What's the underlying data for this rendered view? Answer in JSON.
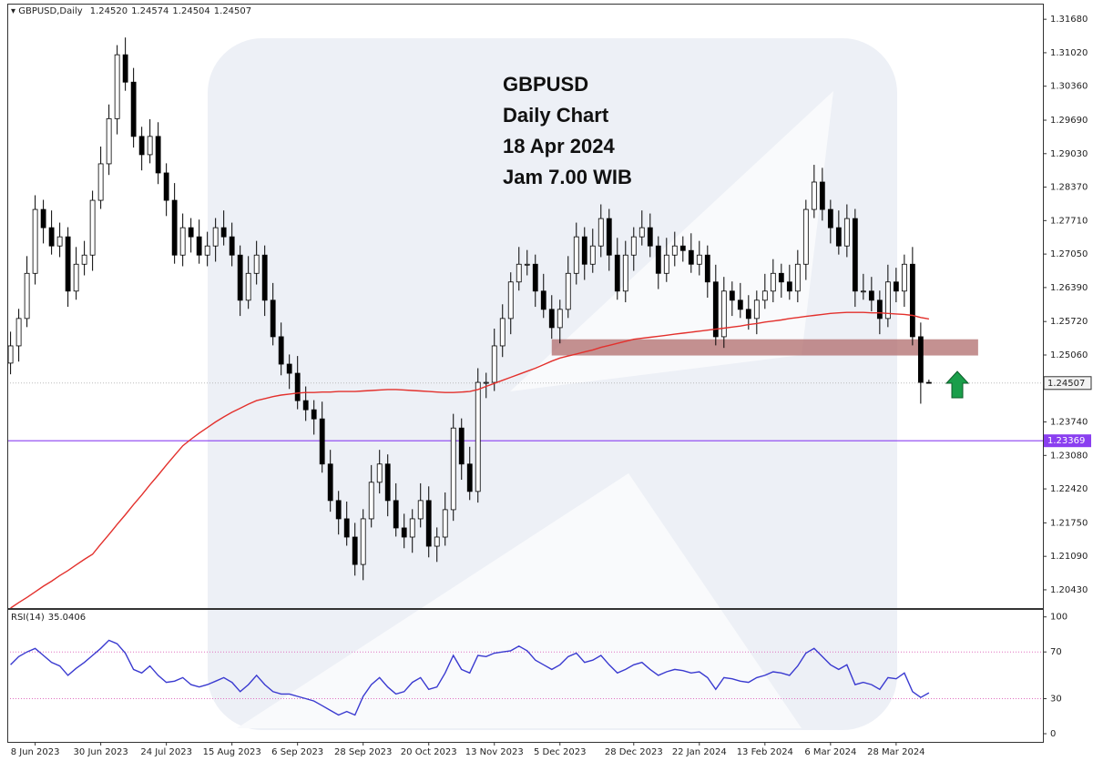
{
  "chart_data": {
    "type": "candlestick",
    "title": "GBPUSD,Daily",
    "ohlc_labels": [
      "1.24520",
      "1.24574",
      "1.24504",
      "1.24507"
    ],
    "annotation": [
      "GBPUSD",
      "Daily Chart",
      "18 Apr 2024",
      "Jam 7.00 WIB"
    ],
    "up_color": "#ffffff",
    "down_color": "#000000",
    "candles": [
      [
        1.249,
        1.2552,
        1.2468,
        1.2524
      ],
      [
        1.2524,
        1.2597,
        1.2493,
        1.2578
      ],
      [
        1.2578,
        1.2701,
        1.2561,
        1.2667
      ],
      [
        1.2667,
        1.2821,
        1.2645,
        1.2793
      ],
      [
        1.2793,
        1.2812,
        1.2726,
        1.2757
      ],
      [
        1.2757,
        1.2791,
        1.2704,
        1.2721
      ],
      [
        1.2721,
        1.2767,
        1.2699,
        1.2739
      ],
      [
        1.2739,
        1.2758,
        1.2601,
        1.2632
      ],
      [
        1.2632,
        1.2719,
        1.2615,
        1.2685
      ],
      [
        1.2685,
        1.2731,
        1.2663,
        1.2703
      ],
      [
        1.2703,
        1.283,
        1.2672,
        1.2811
      ],
      [
        1.2811,
        1.2917,
        1.2794,
        1.2883
      ],
      [
        1.2883,
        1.3,
        1.2861,
        1.2972
      ],
      [
        1.2972,
        1.3117,
        1.2941,
        1.3098
      ],
      [
        1.3098,
        1.3132,
        1.3027,
        1.3044
      ],
      [
        1.3044,
        1.3072,
        1.2915,
        1.2937
      ],
      [
        1.2937,
        1.2956,
        1.287,
        1.2901
      ],
      [
        1.2901,
        1.2971,
        1.2884,
        1.2937
      ],
      [
        1.2937,
        1.2965,
        1.2843,
        1.2865
      ],
      [
        1.2865,
        1.2884,
        1.278,
        1.2811
      ],
      [
        1.2811,
        1.2845,
        1.2686,
        1.2703
      ],
      [
        1.2703,
        1.2785,
        1.2681,
        1.2757
      ],
      [
        1.2757,
        1.2776,
        1.2708,
        1.2739
      ],
      [
        1.2739,
        1.2773,
        1.2686,
        1.2703
      ],
      [
        1.2703,
        1.2749,
        1.2681,
        1.2721
      ],
      [
        1.2721,
        1.2776,
        1.269,
        1.2757
      ],
      [
        1.2757,
        1.2791,
        1.2722,
        1.2739
      ],
      [
        1.2739,
        1.2767,
        1.2681,
        1.2703
      ],
      [
        1.2703,
        1.2722,
        1.2583,
        1.2614
      ],
      [
        1.2614,
        1.2701,
        1.2597,
        1.2667
      ],
      [
        1.2667,
        1.2731,
        1.2645,
        1.2703
      ],
      [
        1.2703,
        1.2722,
        1.2583,
        1.2614
      ],
      [
        1.2614,
        1.2648,
        1.2525,
        1.2542
      ],
      [
        1.2542,
        1.257,
        1.2466,
        1.2488
      ],
      [
        1.2488,
        1.2507,
        1.2439,
        1.247
      ],
      [
        1.247,
        1.2504,
        1.2399,
        1.2416
      ],
      [
        1.2416,
        1.2444,
        1.2376,
        1.2398
      ],
      [
        1.2398,
        1.2417,
        1.2349,
        1.238
      ],
      [
        1.238,
        1.2414,
        1.2274,
        1.2291
      ],
      [
        1.2291,
        1.2319,
        1.2197,
        1.2219
      ],
      [
        1.2219,
        1.2238,
        1.2152,
        1.2183
      ],
      [
        1.2183,
        1.2217,
        1.213,
        1.2147
      ],
      [
        1.2147,
        1.2175,
        1.2071,
        1.2093
      ],
      [
        1.2093,
        1.2202,
        1.2062,
        1.2183
      ],
      [
        1.2183,
        1.2289,
        1.2166,
        1.2255
      ],
      [
        1.2255,
        1.2319,
        1.2233,
        1.2291
      ],
      [
        1.2291,
        1.231,
        1.2188,
        1.2219
      ],
      [
        1.2219,
        1.2253,
        1.2148,
        1.2165
      ],
      [
        1.2165,
        1.2193,
        1.2125,
        1.2147
      ],
      [
        1.2147,
        1.2202,
        1.2116,
        1.2183
      ],
      [
        1.2183,
        1.2253,
        1.2166,
        1.2219
      ],
      [
        1.2219,
        1.2247,
        1.2107,
        1.2129
      ],
      [
        1.2129,
        1.2166,
        1.2098,
        1.2147
      ],
      [
        1.2147,
        1.2235,
        1.213,
        1.2201
      ],
      [
        1.2201,
        1.239,
        1.2179,
        1.2362
      ],
      [
        1.2362,
        1.2381,
        1.226,
        1.2291
      ],
      [
        1.2291,
        1.2325,
        1.222,
        1.2237
      ],
      [
        1.2237,
        1.248,
        1.2215,
        1.2452
      ],
      [
        1.2452,
        1.2471,
        1.2421,
        1.2452
      ],
      [
        1.2452,
        1.2558,
        1.2435,
        1.2524
      ],
      [
        1.2524,
        1.2606,
        1.2502,
        1.2578
      ],
      [
        1.2578,
        1.2669,
        1.2547,
        1.265
      ],
      [
        1.265,
        1.2719,
        1.2633,
        1.2685
      ],
      [
        1.2685,
        1.2713,
        1.2663,
        1.2685
      ],
      [
        1.2685,
        1.2704,
        1.2601,
        1.2632
      ],
      [
        1.2632,
        1.2666,
        1.2579,
        1.2596
      ],
      [
        1.2596,
        1.2624,
        1.2538,
        1.256
      ],
      [
        1.256,
        1.2615,
        1.2529,
        1.2596
      ],
      [
        1.2596,
        1.2701,
        1.2579,
        1.2667
      ],
      [
        1.2667,
        1.2767,
        1.2645,
        1.2739
      ],
      [
        1.2739,
        1.2758,
        1.2654,
        1.2685
      ],
      [
        1.2685,
        1.2755,
        1.2668,
        1.2721
      ],
      [
        1.2721,
        1.2803,
        1.2699,
        1.2775
      ],
      [
        1.2775,
        1.2794,
        1.2672,
        1.2703
      ],
      [
        1.2703,
        1.2737,
        1.2615,
        1.2632
      ],
      [
        1.2632,
        1.2731,
        1.261,
        1.2703
      ],
      [
        1.2703,
        1.2758,
        1.2672,
        1.2739
      ],
      [
        1.2739,
        1.2791,
        1.2722,
        1.2757
      ],
      [
        1.2757,
        1.2785,
        1.2699,
        1.2721
      ],
      [
        1.2721,
        1.274,
        1.2636,
        1.2667
      ],
      [
        1.2667,
        1.2737,
        1.265,
        1.2703
      ],
      [
        1.2703,
        1.2749,
        1.2681,
        1.2721
      ],
      [
        1.2721,
        1.274,
        1.269,
        1.2712
      ],
      [
        1.2712,
        1.2746,
        1.2668,
        1.2685
      ],
      [
        1.2685,
        1.2731,
        1.2663,
        1.2703
      ],
      [
        1.2703,
        1.2722,
        1.2619,
        1.265
      ],
      [
        1.265,
        1.2684,
        1.2525,
        1.2542
      ],
      [
        1.2542,
        1.266,
        1.252,
        1.2632
      ],
      [
        1.2632,
        1.2651,
        1.2583,
        1.2614
      ],
      [
        1.2614,
        1.2648,
        1.2579,
        1.2596
      ],
      [
        1.2596,
        1.2624,
        1.2556,
        1.2578
      ],
      [
        1.2578,
        1.2633,
        1.2547,
        1.2614
      ],
      [
        1.2614,
        1.2666,
        1.2597,
        1.2632
      ],
      [
        1.2632,
        1.2695,
        1.261,
        1.2667
      ],
      [
        1.2667,
        1.2686,
        1.2619,
        1.265
      ],
      [
        1.265,
        1.2684,
        1.2615,
        1.2632
      ],
      [
        1.2632,
        1.2713,
        1.261,
        1.2685
      ],
      [
        1.2685,
        1.2812,
        1.2654,
        1.2793
      ],
      [
        1.2793,
        1.2881,
        1.2776,
        1.2847
      ],
      [
        1.2847,
        1.2875,
        1.2771,
        1.2793
      ],
      [
        1.2793,
        1.2812,
        1.2726,
        1.2757
      ],
      [
        1.2757,
        1.2791,
        1.2704,
        1.2721
      ],
      [
        1.2721,
        1.2803,
        1.2699,
        1.2775
      ],
      [
        1.2775,
        1.2794,
        1.2601,
        1.2632
      ],
      [
        1.2632,
        1.2666,
        1.2615,
        1.2632
      ],
      [
        1.2632,
        1.266,
        1.2592,
        1.2614
      ],
      [
        1.2614,
        1.2633,
        1.2547,
        1.2578
      ],
      [
        1.2578,
        1.2684,
        1.2561,
        1.265
      ],
      [
        1.265,
        1.2678,
        1.261,
        1.2632
      ],
      [
        1.2632,
        1.2704,
        1.2601,
        1.2685
      ],
      [
        1.2685,
        1.2719,
        1.2525,
        1.2542
      ],
      [
        1.2542,
        1.257,
        1.241,
        1.2452
      ],
      [
        1.2452,
        1.24574,
        1.24504,
        1.24507
      ]
    ],
    "xlim": [
      -0.4,
      125.9
    ],
    "xticks": [
      {
        "value": 3,
        "label": "8 Jun 2023"
      },
      {
        "value": 11,
        "label": "30 Jun 2023"
      },
      {
        "value": 19,
        "label": "24 Jul 2023"
      },
      {
        "value": 27,
        "label": "15 Aug 2023"
      },
      {
        "value": 35,
        "label": "6 Sep 2023"
      },
      {
        "value": 43,
        "label": "28 Sep 2023"
      },
      {
        "value": 51,
        "label": "20 Oct 2023"
      },
      {
        "value": 59,
        "label": "13 Nov 2023"
      },
      {
        "value": 67,
        "label": "5 Dec 2023"
      },
      {
        "value": 76,
        "label": "28 Dec 2023"
      },
      {
        "value": 84,
        "label": "22 Jan 2024"
      },
      {
        "value": 92,
        "label": "13 Feb 2024"
      },
      {
        "value": 100,
        "label": "6 Mar 2024"
      },
      {
        "value": 108,
        "label": "28 Mar 2024"
      }
    ],
    "ylim": [
      1.2007,
      1.3197
    ],
    "yticks": [
      {
        "value": 1.3168,
        "label": "1.31680"
      },
      {
        "value": 1.3102,
        "label": "1.31020"
      },
      {
        "value": 1.3036,
        "label": "1.30360"
      },
      {
        "value": 1.2969,
        "label": "1.29690"
      },
      {
        "value": 1.2903,
        "label": "1.29030"
      },
      {
        "value": 1.2837,
        "label": "1.28370"
      },
      {
        "value": 1.2771,
        "label": "1.27710"
      },
      {
        "value": 1.2705,
        "label": "1.27050"
      },
      {
        "value": 1.2639,
        "label": "1.26390"
      },
      {
        "value": 1.2572,
        "label": "1.25720"
      },
      {
        "value": 1.2506,
        "label": "1.25060"
      },
      {
        "value": 1.2374,
        "label": "1.23740"
      },
      {
        "value": 1.2308,
        "label": "1.23080"
      },
      {
        "value": 1.2242,
        "label": "1.22420"
      },
      {
        "value": 1.2175,
        "label": "1.21750"
      },
      {
        "value": 1.2109,
        "label": "1.21090"
      },
      {
        "value": 1.2043,
        "label": "1.20430"
      }
    ],
    "ma": {
      "color": "#e3302c",
      "values": [
        1.2007,
        1.2018,
        1.2028,
        1.2039,
        1.205,
        1.206,
        1.2071,
        1.2081,
        1.2092,
        1.2103,
        1.2113,
        1.2133,
        1.2152,
        1.2172,
        1.2191,
        1.2211,
        1.223,
        1.225,
        1.2269,
        1.2289,
        1.2308,
        1.2327,
        1.234,
        1.2352,
        1.2363,
        1.2374,
        1.2384,
        1.2393,
        1.2401,
        1.2409,
        1.2416,
        1.242,
        1.2424,
        1.2427,
        1.2429,
        1.2431,
        1.2432,
        1.2432,
        1.2433,
        1.2433,
        1.2434,
        1.2434,
        1.2434,
        1.2435,
        1.2436,
        1.2437,
        1.2438,
        1.2438,
        1.2437,
        1.2436,
        1.2435,
        1.2434,
        1.2433,
        1.2432,
        1.2432,
        1.2433,
        1.2434,
        1.2438,
        1.2444,
        1.245,
        1.2456,
        1.2462,
        1.2468,
        1.2474,
        1.248,
        1.2487,
        1.2494,
        1.25,
        1.2504,
        1.2508,
        1.2512,
        1.2516,
        1.2521,
        1.2525,
        1.2529,
        1.2533,
        1.2537,
        1.2539,
        1.2541,
        1.2543,
        1.2545,
        1.2547,
        1.2549,
        1.2551,
        1.2553,
        1.2555,
        1.2557,
        1.2559,
        1.2561,
        1.2563,
        1.2566,
        1.2568,
        1.2571,
        1.2573,
        1.2575,
        1.2578,
        1.258,
        1.2582,
        1.2584,
        1.2586,
        1.2588,
        1.2589,
        1.259,
        1.259,
        1.259,
        1.2589,
        1.2589,
        1.2588,
        1.2587,
        1.2586,
        1.2584,
        1.258,
        1.2577
      ]
    },
    "zone": {
      "from": 1.2505,
      "to": 1.2537,
      "x_from": 66,
      "x_to": 118,
      "color": "#b06c6c"
    },
    "price_line": {
      "value": 1.24507,
      "label": "1.24507"
    },
    "hline": {
      "value": 1.23369,
      "label": "1.23369",
      "color": "#8a3ff0"
    },
    "rsi": {
      "name": "RSI(14)",
      "color": "#3a3ad0",
      "level_color": "#e070c0",
      "ylim": [
        -7,
        106
      ],
      "yticks": [
        0,
        30,
        70,
        100
      ],
      "levels": [
        30,
        70
      ],
      "values": [
        59,
        66,
        70,
        73,
        67,
        61,
        58,
        50,
        56,
        61,
        67,
        73,
        80,
        77,
        69,
        55,
        52,
        58,
        50,
        44,
        45,
        48,
        42,
        40,
        42,
        45,
        48,
        44,
        36,
        42,
        50,
        42,
        36,
        34,
        34,
        32,
        30,
        28,
        24,
        20,
        16,
        19,
        16,
        32,
        42,
        48,
        40,
        34,
        36,
        44,
        48,
        38,
        40,
        52,
        67,
        55,
        52,
        67,
        66,
        69,
        70,
        71,
        75,
        71,
        63,
        59,
        55,
        59,
        66,
        69,
        61,
        63,
        67,
        59,
        52,
        55,
        59,
        61,
        55,
        50,
        53,
        55,
        54,
        52,
        53,
        48,
        38,
        48,
        47,
        45,
        44,
        48,
        50,
        53,
        52,
        50,
        58,
        69,
        73,
        66,
        59,
        55,
        59,
        42,
        44,
        42,
        38,
        48,
        47,
        52,
        36,
        31,
        35.0406
      ]
    }
  }
}
